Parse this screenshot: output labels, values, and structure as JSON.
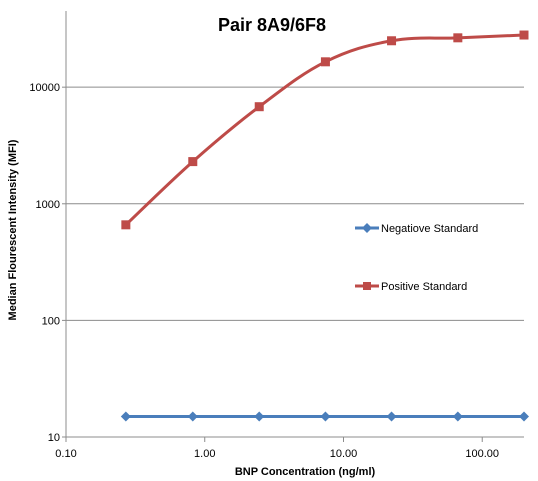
{
  "chart_data": {
    "type": "line",
    "title": "Pair 8A9/6F8",
    "xlabel": "BNP Concentration (ng/ml)",
    "ylabel": "Median Flourescent Intensity (MFI)",
    "xscale": "log",
    "yscale": "log",
    "xlim": [
      0.1,
      200
    ],
    "ylim": [
      10,
      45000
    ],
    "xticks": [
      0.1,
      1,
      10,
      100
    ],
    "xtick_labels": [
      "0.10",
      "1.00",
      "10.00",
      "100.00"
    ],
    "yticks": [
      10,
      100,
      1000,
      10000
    ],
    "ytick_labels": [
      "10",
      "100",
      "1000",
      "10000"
    ],
    "grid": "horizontal major gridlines",
    "legend_position": "right",
    "x": [
      0.27,
      0.82,
      2.47,
      7.41,
      22.2,
      66.7,
      200
    ],
    "series": [
      {
        "name": "Negatiove Standard",
        "color": "#4a7ebb",
        "marker": "diamond",
        "values": [
          15,
          15,
          15,
          15,
          15,
          15,
          15
        ]
      },
      {
        "name": "Positive Standard",
        "color": "#be4b48",
        "marker": "square",
        "values": [
          660,
          2300,
          6800,
          16500,
          25000,
          26500,
          28000
        ]
      }
    ]
  }
}
